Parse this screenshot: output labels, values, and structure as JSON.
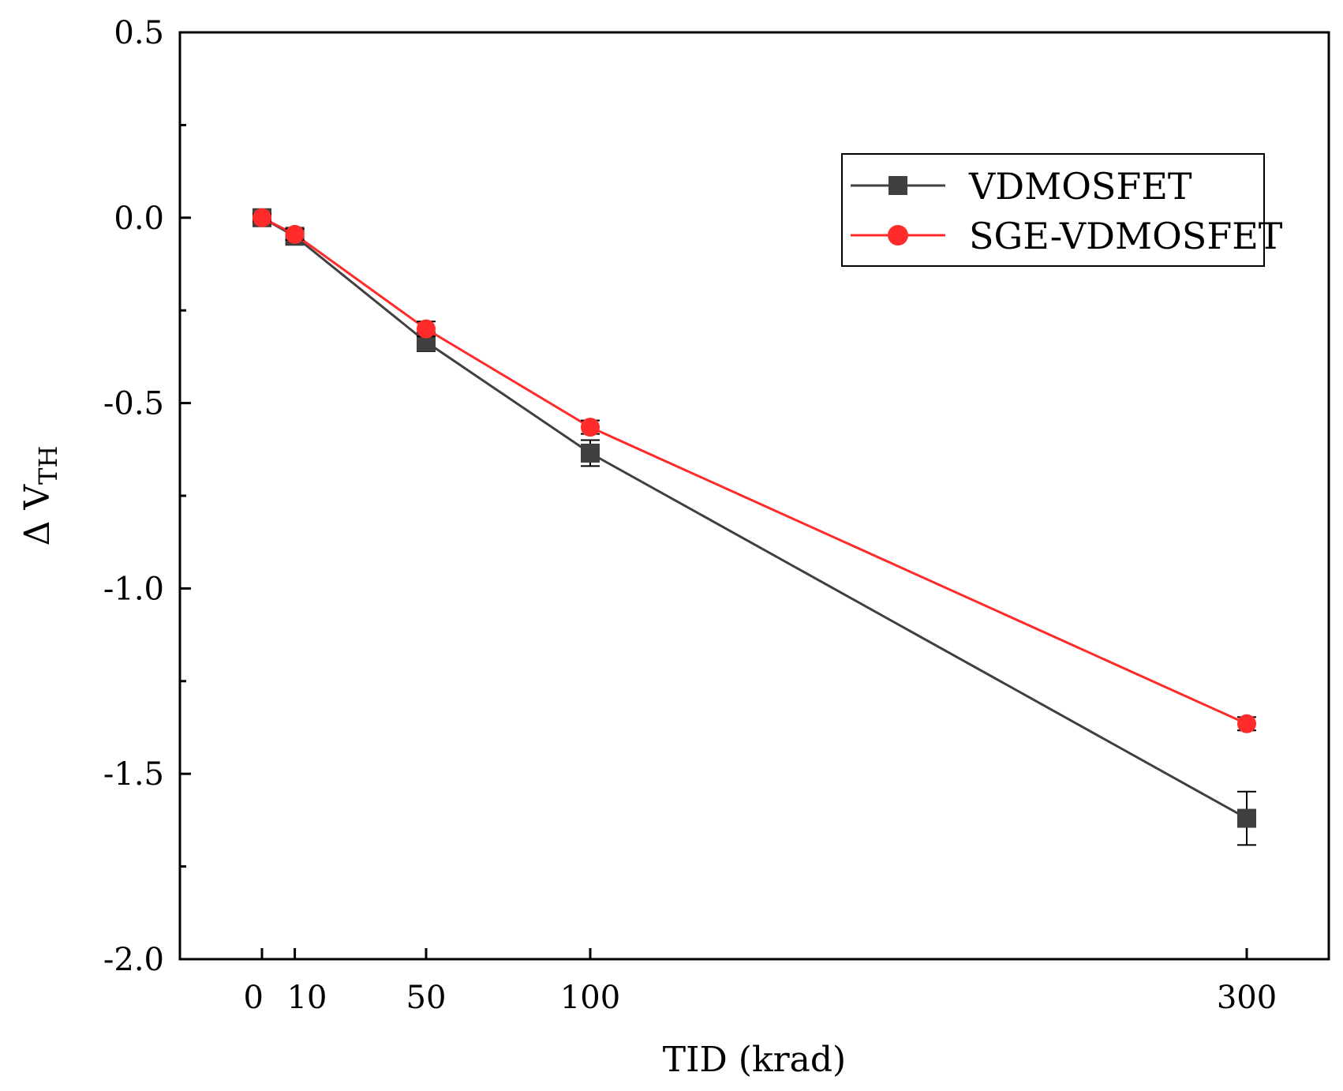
{
  "chart_data": {
    "type": "line",
    "title": "",
    "xlabel": "TID (krad)",
    "ylabel": {
      "main": "Δ V",
      "sub": "TH"
    },
    "x": [
      0,
      10,
      50,
      100,
      300
    ],
    "x_tick_labels": [
      "0",
      "10",
      "50",
      "100",
      "300"
    ],
    "xlim": [
      -25,
      325
    ],
    "ylim": [
      -2.0,
      0.5
    ],
    "y_ticks": [
      0.5,
      0.0,
      -0.5,
      -1.0,
      -1.5,
      -2.0
    ],
    "y_tick_labels": [
      "0.5",
      "0.0",
      "-0.5",
      "-1.0",
      "-1.5",
      "-2.0"
    ],
    "y_minor_ticks": [
      0.25,
      -0.25,
      -0.75,
      -1.25,
      -1.75
    ],
    "grid": false,
    "legend_position": "top-right",
    "series": [
      {
        "name": "VDMOSFET",
        "color": "#404040",
        "marker": "square",
        "values": [
          0.0,
          -0.05,
          -0.335,
          -0.635,
          -1.62
        ],
        "errors": [
          0.01,
          0.02,
          0.025,
          0.035,
          0.072
        ]
      },
      {
        "name": "SGE-VDMOSFET",
        "color": "#ff2b2b",
        "marker": "circle",
        "values": [
          0.0,
          -0.045,
          -0.3,
          -0.565,
          -1.365
        ],
        "errors": [
          0.01,
          0.015,
          0.02,
          0.018,
          0.018
        ]
      }
    ]
  }
}
